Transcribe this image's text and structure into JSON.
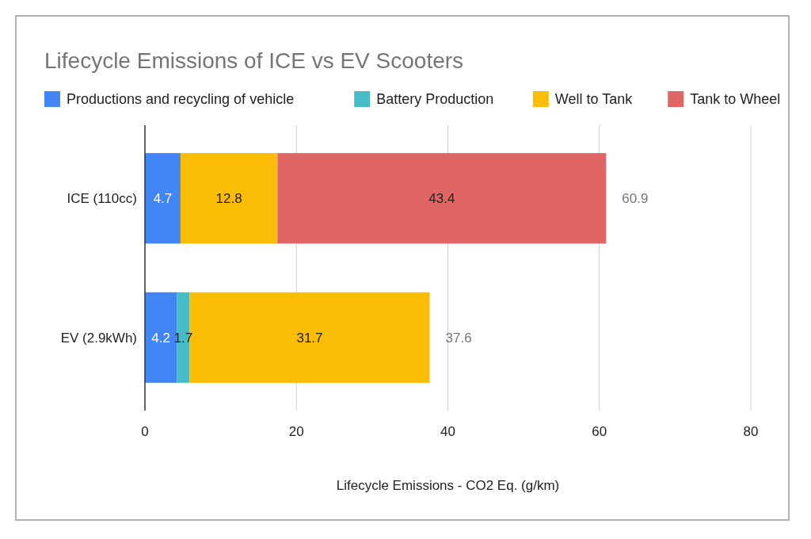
{
  "chart_data": {
    "type": "bar",
    "orientation": "horizontal",
    "stacked": true,
    "title": "Lifecycle Emissions of ICE vs EV Scooters",
    "xlabel": "Lifecycle Emissions - CO2 Eq. (g/km)",
    "categories": [
      "ICE (110cc)",
      "EV (2.9kWh)"
    ],
    "series": [
      {
        "name": "Productions and recycling of vehicle",
        "color": "#4285f4",
        "values": [
          4.7,
          4.2
        ]
      },
      {
        "name": "Battery Production",
        "color": "#46bdc6",
        "values": [
          null,
          1.7
        ]
      },
      {
        "name": "Well to Tank",
        "color": "#fbbc04",
        "values": [
          12.8,
          31.7
        ]
      },
      {
        "name": "Tank to Wheel",
        "color": "#e06666",
        "values": [
          43.4,
          null
        ]
      }
    ],
    "xlim": [
      0,
      80
    ],
    "xticks": [
      0,
      20,
      40,
      60,
      80
    ],
    "grid": "x",
    "legend": "top",
    "data_labels": true,
    "totals": [
      "60.9",
      "37.6"
    ]
  }
}
